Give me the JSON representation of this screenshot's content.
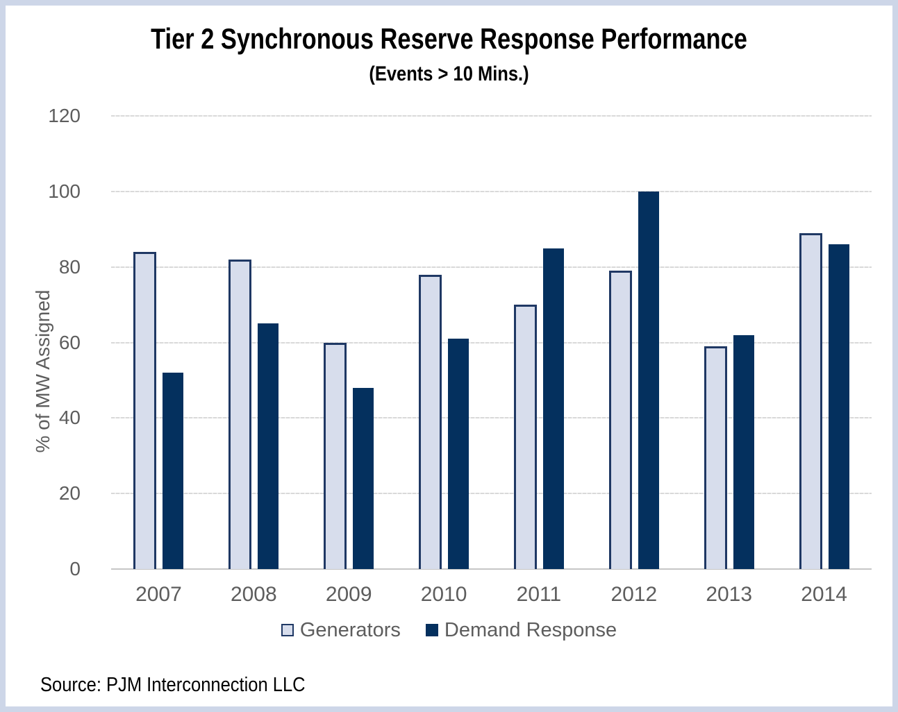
{
  "title": "Tier 2 Synchronous Reserve Response Performance",
  "subtitle": "(Events > 10 Mins.)",
  "source_note": "Source: PJM Interconnection LLC",
  "colors": {
    "frame_border": "#cdd6e8",
    "generators_fill": "#d7ddec",
    "generators_border": "#1f3864",
    "demand_response_fill": "#04305e",
    "gridline": "#d9d9d9",
    "axis_text": "#5d5d5d",
    "title_text": "#000000"
  },
  "chart_data": {
    "type": "bar",
    "title": "Tier 2 Synchronous Reserve Response Performance",
    "subtitle": "(Events > 10 Mins.)",
    "categories": [
      "2007",
      "2008",
      "2009",
      "2010",
      "2011",
      "2012",
      "2013",
      "2014"
    ],
    "series": [
      {
        "name": "Generators",
        "values": [
          84,
          82,
          60,
          78,
          70,
          79,
          59,
          89
        ]
      },
      {
        "name": "Demand Response",
        "values": [
          52,
          65,
          48,
          61,
          85,
          100,
          62,
          86
        ]
      }
    ],
    "xlabel": "",
    "ylabel": "% of MW Assigned",
    "ylim": [
      0,
      120
    ],
    "yticks": [
      0,
      20,
      40,
      60,
      80,
      100,
      120
    ],
    "grid": true,
    "gridline_style": "dashed",
    "legend_position": "bottom"
  }
}
